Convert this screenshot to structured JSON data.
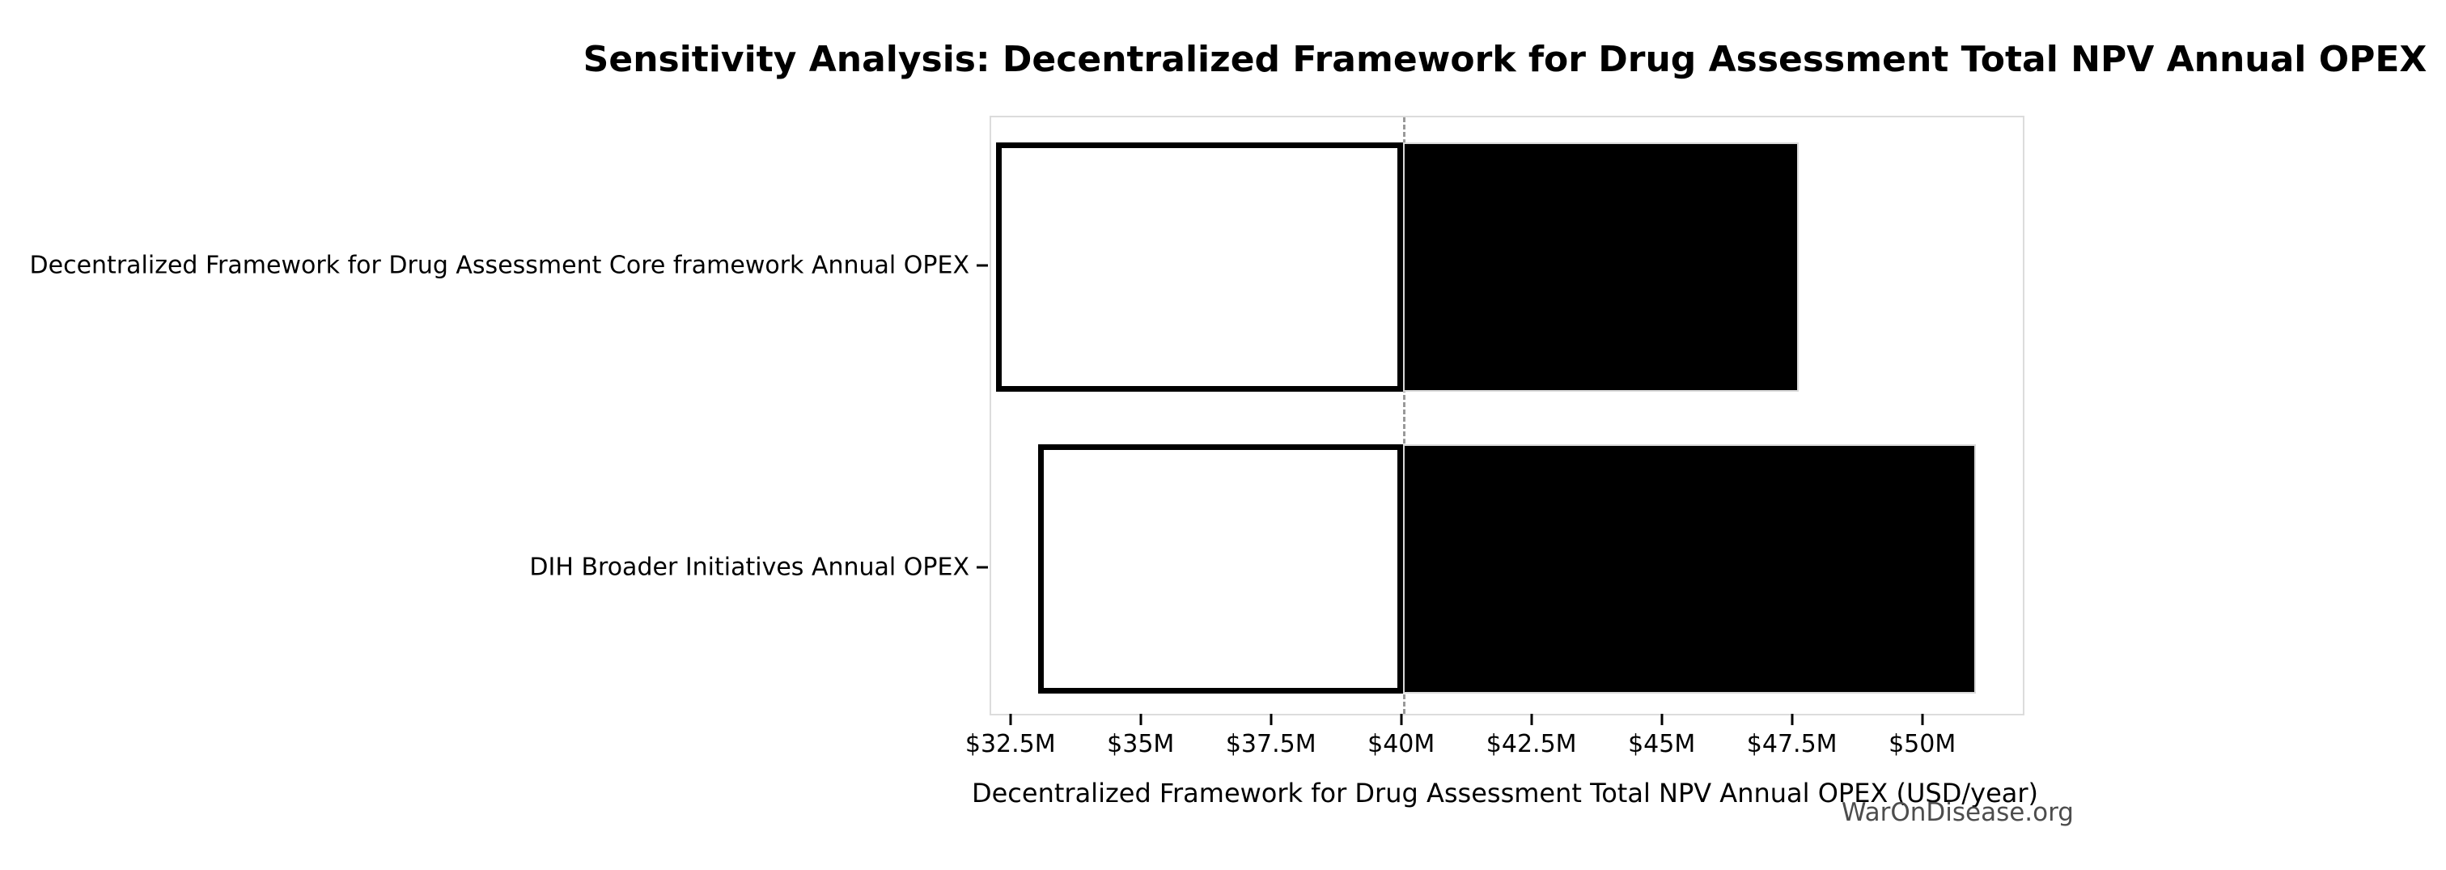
{
  "chart_data": {
    "type": "bar",
    "subtype": "tornado-sensitivity",
    "orientation": "horizontal",
    "title": "Sensitivity Analysis: Decentralized Framework for Drug Assessment Total NPV Annual OPEX",
    "xlabel": "Decentralized Framework for Drug Assessment Total NPV Annual OPEX (USD/year)",
    "ylabel": "",
    "categories": [
      "Decentralized Framework for Drug Assessment Core framework Annual OPEX",
      "DIH Broader Initiatives Annual OPEX"
    ],
    "bars": [
      {
        "category": "Decentralized Framework for Drug Assessment Core framework Annual OPEX",
        "low": 32.2,
        "high": 47.6
      },
      {
        "category": "DIH Broader Initiatives Annual OPEX",
        "low": 33.0,
        "high": 51.0
      }
    ],
    "values_unit": "USD millions per year",
    "baseline": 40,
    "baseline_label": "$40M",
    "x_ticks": [
      {
        "value": 32.5,
        "label": "$32.5M"
      },
      {
        "value": 35,
        "label": "$35M"
      },
      {
        "value": 37.5,
        "label": "$37.5M"
      },
      {
        "value": 40,
        "label": "$40M"
      },
      {
        "value": 42.5,
        "label": "$42.5M"
      },
      {
        "value": 45,
        "label": "$45M"
      },
      {
        "value": 47.5,
        "label": "$47.5M"
      },
      {
        "value": 50,
        "label": "$50M"
      }
    ],
    "xlim": [
      32.1,
      51.9
    ],
    "grid": false,
    "legend": "none",
    "colors": {
      "below_baseline_fill": "#ffffff",
      "below_baseline_edge": "#000000",
      "above_baseline_fill": "#000000",
      "above_baseline_edge": "#d9d9d9",
      "baseline_line": "#999999",
      "spine": "#dcdcdc",
      "text": "#000000",
      "watermark_text": "#4d4d4d"
    },
    "watermark": "WarOnDisease.org"
  }
}
